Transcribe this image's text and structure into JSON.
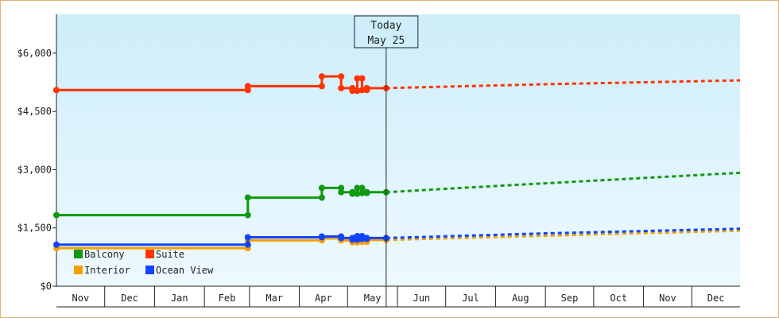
{
  "chart_data": {
    "type": "line",
    "title": "",
    "xlabel": "",
    "ylabel": "",
    "x_start": "2014-11-01",
    "x_end": "2015-12-31",
    "ylim": [
      0,
      7000
    ],
    "y_ticks": [
      {
        "value": 0,
        "label": "$0"
      },
      {
        "value": 1500,
        "label": "$1,500"
      },
      {
        "value": 3000,
        "label": "$3,000"
      },
      {
        "value": 4500,
        "label": "$4,500"
      },
      {
        "value": 6000,
        "label": "$6,000"
      }
    ],
    "x_month_labels": [
      {
        "label": "Nov",
        "start": "2014-11-01",
        "end": "2014-12-01"
      },
      {
        "label": "Dec",
        "start": "2014-12-01",
        "end": "2015-01-01"
      },
      {
        "label": "Jan",
        "start": "2015-01-01",
        "end": "2015-02-01"
      },
      {
        "label": "Feb",
        "start": "2015-02-01",
        "end": "2015-03-01"
      },
      {
        "label": "Mar",
        "start": "2015-03-01",
        "end": "2015-04-01"
      },
      {
        "label": "Apr",
        "start": "2015-04-01",
        "end": "2015-05-01"
      },
      {
        "label": "May",
        "start": "2015-05-01",
        "end": "2015-06-01"
      },
      {
        "label": "Jun",
        "start": "2015-06-01",
        "end": "2015-07-01"
      },
      {
        "label": "Jul",
        "start": "2015-07-01",
        "end": "2015-08-01"
      },
      {
        "label": "Aug",
        "start": "2015-08-01",
        "end": "2015-09-01"
      },
      {
        "label": "Sep",
        "start": "2015-09-01",
        "end": "2015-10-01"
      },
      {
        "label": "Oct",
        "start": "2015-10-01",
        "end": "2015-11-01"
      },
      {
        "label": "Nov",
        "start": "2015-11-01",
        "end": "2015-12-01"
      },
      {
        "label": "Dec",
        "start": "2015-12-01",
        "end": "2015-12-31"
      }
    ],
    "today": {
      "date": "2015-05-25",
      "label_line1": "Today",
      "label_line2": "May 25"
    },
    "background_gradient": [
      "#cdeefa",
      "#eef9ff"
    ],
    "grid": false,
    "legend": {
      "placement": "bottom-left"
    },
    "series": [
      {
        "name": "Suite",
        "color": "#ff3300",
        "points": [
          [
            "2014-11-01",
            5050
          ],
          [
            "2015-02-28",
            5050
          ],
          [
            "2015-02-28",
            5150
          ],
          [
            "2015-04-15",
            5150
          ],
          [
            "2015-04-15",
            5400
          ],
          [
            "2015-04-27",
            5400
          ],
          [
            "2015-04-27",
            5100
          ],
          [
            "2015-05-04",
            5100
          ],
          [
            "2015-05-04",
            5030
          ],
          [
            "2015-05-07",
            5030
          ],
          [
            "2015-05-07",
            5350
          ],
          [
            "2015-05-10",
            5350
          ],
          [
            "2015-05-10",
            5050
          ],
          [
            "2015-05-13",
            5050
          ],
          [
            "2015-05-13",
            5100
          ],
          [
            "2015-05-25",
            5100
          ]
        ],
        "projection": [
          [
            "2015-05-25",
            5100
          ],
          [
            "2015-09-01",
            5200
          ],
          [
            "2015-12-31",
            5300
          ]
        ]
      },
      {
        "name": "Balcony",
        "color": "#119911",
        "points": [
          [
            "2014-11-01",
            1830
          ],
          [
            "2015-02-28",
            1830
          ],
          [
            "2015-02-28",
            2280
          ],
          [
            "2015-04-15",
            2280
          ],
          [
            "2015-04-15",
            2530
          ],
          [
            "2015-04-27",
            2530
          ],
          [
            "2015-04-27",
            2420
          ],
          [
            "2015-05-04",
            2420
          ],
          [
            "2015-05-04",
            2380
          ],
          [
            "2015-05-07",
            2380
          ],
          [
            "2015-05-07",
            2530
          ],
          [
            "2015-05-10",
            2530
          ],
          [
            "2015-05-10",
            2400
          ],
          [
            "2015-05-13",
            2400
          ],
          [
            "2015-05-13",
            2420
          ],
          [
            "2015-05-25",
            2420
          ]
        ],
        "projection": [
          [
            "2015-05-25",
            2420
          ],
          [
            "2015-08-01",
            2580
          ],
          [
            "2015-12-31",
            2920
          ]
        ]
      },
      {
        "name": "Interior",
        "color": "#f2a000",
        "points": [
          [
            "2014-11-01",
            980
          ],
          [
            "2015-02-28",
            980
          ],
          [
            "2015-02-28",
            1180
          ],
          [
            "2015-04-15",
            1180
          ],
          [
            "2015-04-15",
            1230
          ],
          [
            "2015-04-27",
            1230
          ],
          [
            "2015-04-27",
            1180
          ],
          [
            "2015-05-04",
            1180
          ],
          [
            "2015-05-04",
            1130
          ],
          [
            "2015-05-07",
            1130
          ],
          [
            "2015-05-07",
            1190
          ],
          [
            "2015-05-10",
            1190
          ],
          [
            "2015-05-10",
            1140
          ],
          [
            "2015-05-13",
            1140
          ],
          [
            "2015-05-13",
            1190
          ],
          [
            "2015-05-25",
            1190
          ]
        ],
        "projection": [
          [
            "2015-05-25",
            1190
          ],
          [
            "2015-09-01",
            1300
          ],
          [
            "2015-12-31",
            1430
          ]
        ]
      },
      {
        "name": "Ocean View",
        "color": "#1144ff",
        "points": [
          [
            "2014-11-01",
            1070
          ],
          [
            "2015-02-28",
            1070
          ],
          [
            "2015-02-28",
            1260
          ],
          [
            "2015-04-15",
            1260
          ],
          [
            "2015-04-15",
            1280
          ],
          [
            "2015-04-27",
            1280
          ],
          [
            "2015-04-27",
            1240
          ],
          [
            "2015-05-04",
            1240
          ],
          [
            "2015-05-04",
            1200
          ],
          [
            "2015-05-07",
            1200
          ],
          [
            "2015-05-07",
            1290
          ],
          [
            "2015-05-10",
            1290
          ],
          [
            "2015-05-10",
            1220
          ],
          [
            "2015-05-13",
            1220
          ],
          [
            "2015-05-13",
            1240
          ],
          [
            "2015-05-25",
            1240
          ]
        ],
        "projection": [
          [
            "2015-05-25",
            1240
          ],
          [
            "2015-09-01",
            1360
          ],
          [
            "2015-12-31",
            1480
          ]
        ]
      }
    ],
    "legend_items": [
      {
        "name": "Balcony",
        "color": "#119911",
        "row": 0,
        "col": 0
      },
      {
        "name": "Suite",
        "color": "#ff3300",
        "row": 0,
        "col": 1
      },
      {
        "name": "Interior",
        "color": "#f2a000",
        "row": 1,
        "col": 0
      },
      {
        "name": "Ocean View",
        "color": "#1144ff",
        "row": 1,
        "col": 1
      }
    ]
  }
}
